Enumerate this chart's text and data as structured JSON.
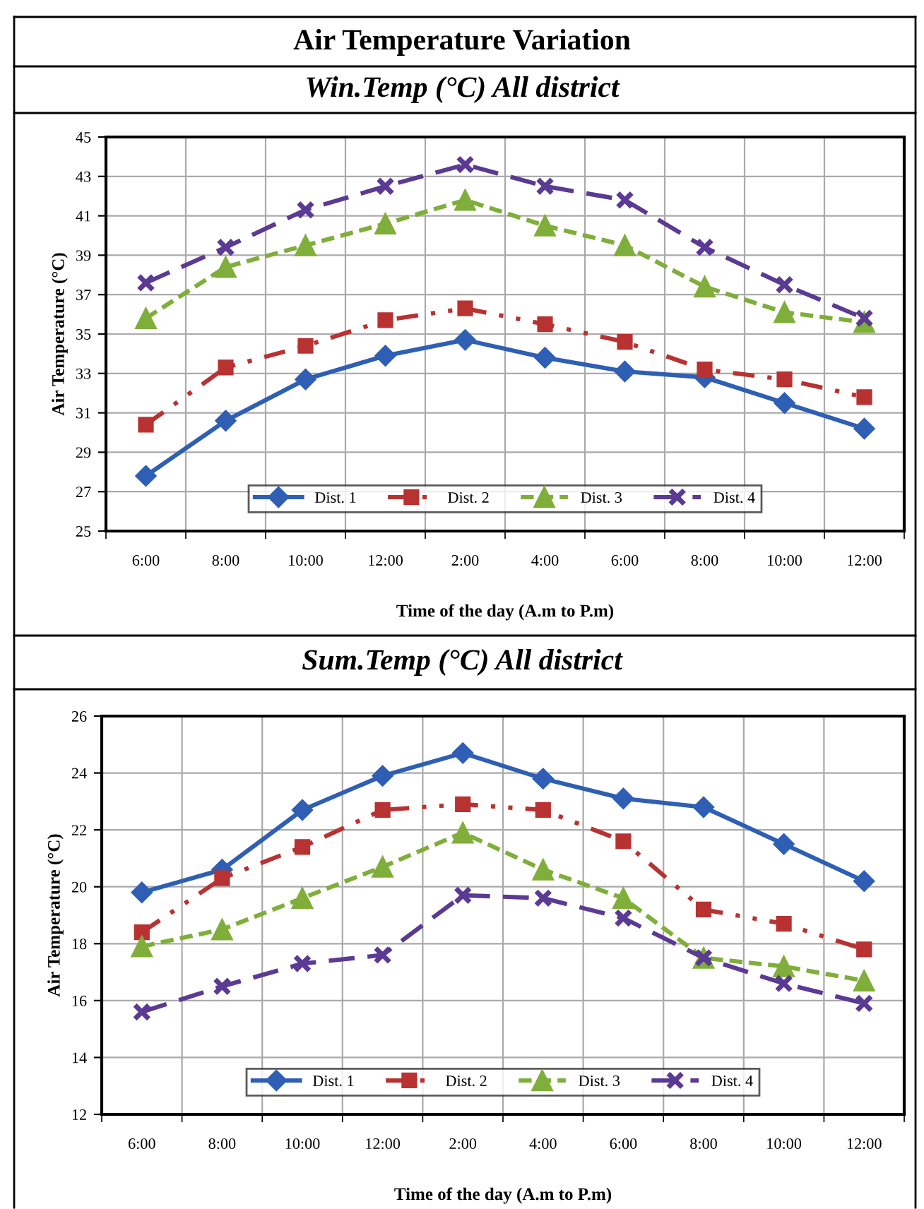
{
  "chart_data": [
    {
      "type": "line",
      "title": "Win.Temp (°C) All district",
      "annotations": [
        "Air Temperature Variation"
      ],
      "xlabel": "Time of the day (A.m to P.m)",
      "ylabel": "Air Temperature (°C)",
      "categories": [
        "6:00",
        "8:00",
        "10:00",
        "12:00",
        "2:00",
        "4:00",
        "6:00",
        "8:00",
        "10:00",
        "12:00"
      ],
      "ylim": [
        25,
        45
      ],
      "yticks": [
        25,
        27,
        29,
        31,
        33,
        35,
        37,
        39,
        41,
        43,
        45
      ],
      "grid": true,
      "legend": "bottom",
      "series": [
        {
          "name": "Dist. 1",
          "color": "#2e5fb4",
          "marker": "diamond",
          "line_style": "solid",
          "values": [
            27.8,
            30.6,
            32.7,
            33.9,
            34.7,
            33.8,
            33.1,
            32.8,
            31.5,
            30.2
          ]
        },
        {
          "name": "Dist. 2",
          "color": "#b83232",
          "marker": "square",
          "line_style": "dashdot",
          "values": [
            30.4,
            33.3,
            34.4,
            35.7,
            36.3,
            35.5,
            34.6,
            33.2,
            32.7,
            31.8
          ]
        },
        {
          "name": "Dist. 3",
          "color": "#7fae3a",
          "marker": "triangle",
          "line_style": "dashed",
          "values": [
            35.8,
            38.4,
            39.5,
            40.6,
            41.8,
            40.5,
            39.5,
            37.4,
            36.1,
            35.6
          ]
        },
        {
          "name": "Dist. 4",
          "color": "#5b3a93",
          "marker": "cross",
          "line_style": "longdash",
          "values": [
            37.6,
            39.4,
            41.3,
            42.5,
            43.6,
            42.5,
            41.8,
            39.4,
            37.5,
            35.8
          ]
        }
      ]
    },
    {
      "type": "line",
      "title": "Sum.Temp (°C) All district",
      "xlabel": "Time of the day (A.m to P.m)",
      "ylabel": "Air Temperature (°C)",
      "categories": [
        "6:00",
        "8:00",
        "10:00",
        "12:00",
        "2:00",
        "4:00",
        "6:00",
        "8:00",
        "10:00",
        "12:00"
      ],
      "ylim": [
        12,
        26
      ],
      "yticks": [
        12,
        14,
        16,
        18,
        20,
        22,
        24,
        26
      ],
      "grid": true,
      "legend": "bottom",
      "series": [
        {
          "name": "Dist. 1",
          "color": "#2e5fb4",
          "marker": "diamond",
          "line_style": "solid",
          "values": [
            19.8,
            20.6,
            22.7,
            23.9,
            24.7,
            23.8,
            23.1,
            22.8,
            21.5,
            20.2
          ]
        },
        {
          "name": "Dist. 2",
          "color": "#b83232",
          "marker": "square",
          "line_style": "dashdot",
          "values": [
            18.4,
            20.3,
            21.4,
            22.7,
            22.9,
            22.7,
            21.6,
            19.2,
            18.7,
            17.8
          ]
        },
        {
          "name": "Dist. 3",
          "color": "#7fae3a",
          "marker": "triangle",
          "line_style": "dashed",
          "values": [
            17.9,
            18.5,
            19.6,
            20.7,
            21.9,
            20.6,
            19.6,
            17.5,
            17.2,
            16.7
          ]
        },
        {
          "name": "Dist. 4",
          "color": "#5b3a93",
          "marker": "cross",
          "line_style": "longdash",
          "values": [
            15.6,
            16.5,
            17.3,
            17.6,
            19.7,
            19.6,
            18.9,
            17.5,
            16.6,
            15.9
          ]
        }
      ]
    }
  ]
}
